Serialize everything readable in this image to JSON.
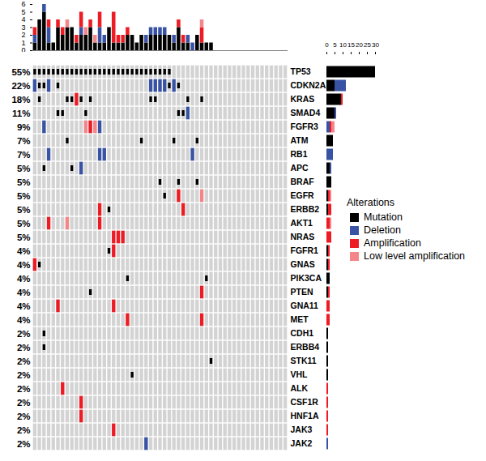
{
  "chart_data": {
    "type": "oncoprint",
    "n_samples": 55,
    "legend_title": "Alterations",
    "alteration_types": [
      {
        "name": "Mutation",
        "color": "#000000"
      },
      {
        "name": "Deletion",
        "color": "#3953a4"
      },
      {
        "name": "Amplification",
        "color": "#ed1c24"
      },
      {
        "name": "Low level amplification",
        "color": "#f4868a"
      }
    ],
    "top_bar": {
      "ylim": [
        0,
        6
      ],
      "yticks": [
        0,
        1,
        2,
        3,
        4,
        5,
        6
      ]
    },
    "side_bar": {
      "xlim": [
        0,
        30
      ],
      "xticks": [
        0,
        5,
        10,
        15,
        20,
        25,
        30
      ]
    },
    "genes": [
      {
        "name": "TP53",
        "percent": 55,
        "percent_label": "55%",
        "alterations": {
          "Mutation": [
            0,
            1,
            2,
            3,
            4,
            5,
            6,
            7,
            8,
            9,
            10,
            11,
            12,
            13,
            14,
            15,
            16,
            17,
            18,
            19,
            20,
            21,
            22,
            23,
            24,
            25,
            26,
            27,
            28,
            29
          ]
        }
      },
      {
        "name": "CDKN2A",
        "percent": 22,
        "percent_label": "22%",
        "alterations": {
          "Mutation": [
            1,
            2,
            5,
            29,
            31
          ],
          "Deletion": [
            0,
            3,
            25,
            26,
            27,
            28,
            30
          ]
        }
      },
      {
        "name": "KRAS",
        "percent": 18,
        "percent_label": "18%",
        "alterations": {
          "Mutation": [
            1,
            7,
            8,
            10,
            12,
            25,
            26,
            33,
            36
          ],
          "Amplification": [
            9
          ]
        }
      },
      {
        "name": "SMAD4",
        "percent": 11,
        "percent_label": "11%",
        "alterations": {
          "Mutation": [
            5,
            6,
            11,
            31,
            32
          ],
          "Deletion": [
            33
          ]
        }
      },
      {
        "name": "FGFR3",
        "percent": 9,
        "percent_label": "9%",
        "alterations": {
          "Deletion": [
            2,
            14
          ],
          "Amplification": [
            12
          ],
          "Low level amplification": [
            11,
            13
          ]
        }
      },
      {
        "name": "ATM",
        "percent": 7,
        "percent_label": "7%",
        "alterations": {
          "Mutation": [
            7,
            23,
            30,
            35
          ]
        }
      },
      {
        "name": "RB1",
        "percent": 7,
        "percent_label": "7%",
        "alterations": {
          "Deletion": [
            3,
            14,
            15,
            34
          ]
        }
      },
      {
        "name": "APC",
        "percent": 5,
        "percent_label": "5%",
        "alterations": {
          "Mutation": [
            2,
            8
          ],
          "Deletion": [
            10
          ]
        }
      },
      {
        "name": "BRAF",
        "percent": 5,
        "percent_label": "5%",
        "alterations": {
          "Mutation": [
            27,
            31,
            35
          ]
        }
      },
      {
        "name": "EGFR",
        "percent": 5,
        "percent_label": "5%",
        "alterations": {
          "Mutation": [
            28
          ],
          "Amplification": [
            31
          ],
          "Low level amplification": [
            36
          ]
        }
      },
      {
        "name": "ERBB2",
        "percent": 5,
        "percent_label": "5%",
        "alterations": {
          "Mutation": [
            16
          ],
          "Amplification": [
            14,
            32
          ]
        }
      },
      {
        "name": "AKT1",
        "percent": 5,
        "percent_label": "5%",
        "alterations": {
          "Amplification": [
            3,
            14
          ],
          "Low level amplification": [
            7
          ]
        }
      },
      {
        "name": "NRAS",
        "percent": 5,
        "percent_label": "5%",
        "alterations": {
          "Amplification": [
            17,
            18,
            19
          ]
        }
      },
      {
        "name": "FGFR1",
        "percent": 4,
        "percent_label": "4%",
        "alterations": {
          "Mutation": [
            16
          ],
          "Amplification": [
            17
          ]
        }
      },
      {
        "name": "GNAS",
        "percent": 4,
        "percent_label": "4%",
        "alterations": {
          "Mutation": [
            1
          ],
          "Amplification": [
            0
          ]
        }
      },
      {
        "name": "PIK3CA",
        "percent": 4,
        "percent_label": "4%",
        "alterations": {
          "Mutation": [
            20,
            37
          ]
        }
      },
      {
        "name": "PTEN",
        "percent": 4,
        "percent_label": "4%",
        "alterations": {
          "Mutation": [
            12
          ],
          "Amplification": [
            36
          ]
        }
      },
      {
        "name": "GNA11",
        "percent": 4,
        "percent_label": "4%",
        "alterations": {
          "Amplification": [
            5,
            17
          ]
        }
      },
      {
        "name": "MET",
        "percent": 4,
        "percent_label": "4%",
        "alterations": {
          "Amplification": [
            20,
            36
          ]
        }
      },
      {
        "name": "CDH1",
        "percent": 2,
        "percent_label": "2%",
        "alterations": {
          "Mutation": [
            2
          ]
        }
      },
      {
        "name": "ERBB4",
        "percent": 2,
        "percent_label": "2%",
        "alterations": {
          "Mutation": [
            2
          ]
        }
      },
      {
        "name": "STK11",
        "percent": 2,
        "percent_label": "2%",
        "alterations": {
          "Mutation": [
            38
          ]
        }
      },
      {
        "name": "VHL",
        "percent": 2,
        "percent_label": "2%",
        "alterations": {
          "Mutation": [
            21
          ]
        }
      },
      {
        "name": "ALK",
        "percent": 2,
        "percent_label": "2%",
        "alterations": {
          "Amplification": [
            6
          ]
        }
      },
      {
        "name": "CSF1R",
        "percent": 2,
        "percent_label": "2%",
        "alterations": {
          "Amplification": [
            10
          ]
        }
      },
      {
        "name": "HNF1A",
        "percent": 2,
        "percent_label": "2%",
        "alterations": {
          "Amplification": [
            10
          ]
        }
      },
      {
        "name": "JAK3",
        "percent": 2,
        "percent_label": "2%",
        "alterations": {
          "Amplification": [
            17
          ]
        }
      },
      {
        "name": "JAK2",
        "percent": 2,
        "percent_label": "2%",
        "alterations": {
          "Deletion": [
            24
          ]
        }
      }
    ]
  }
}
